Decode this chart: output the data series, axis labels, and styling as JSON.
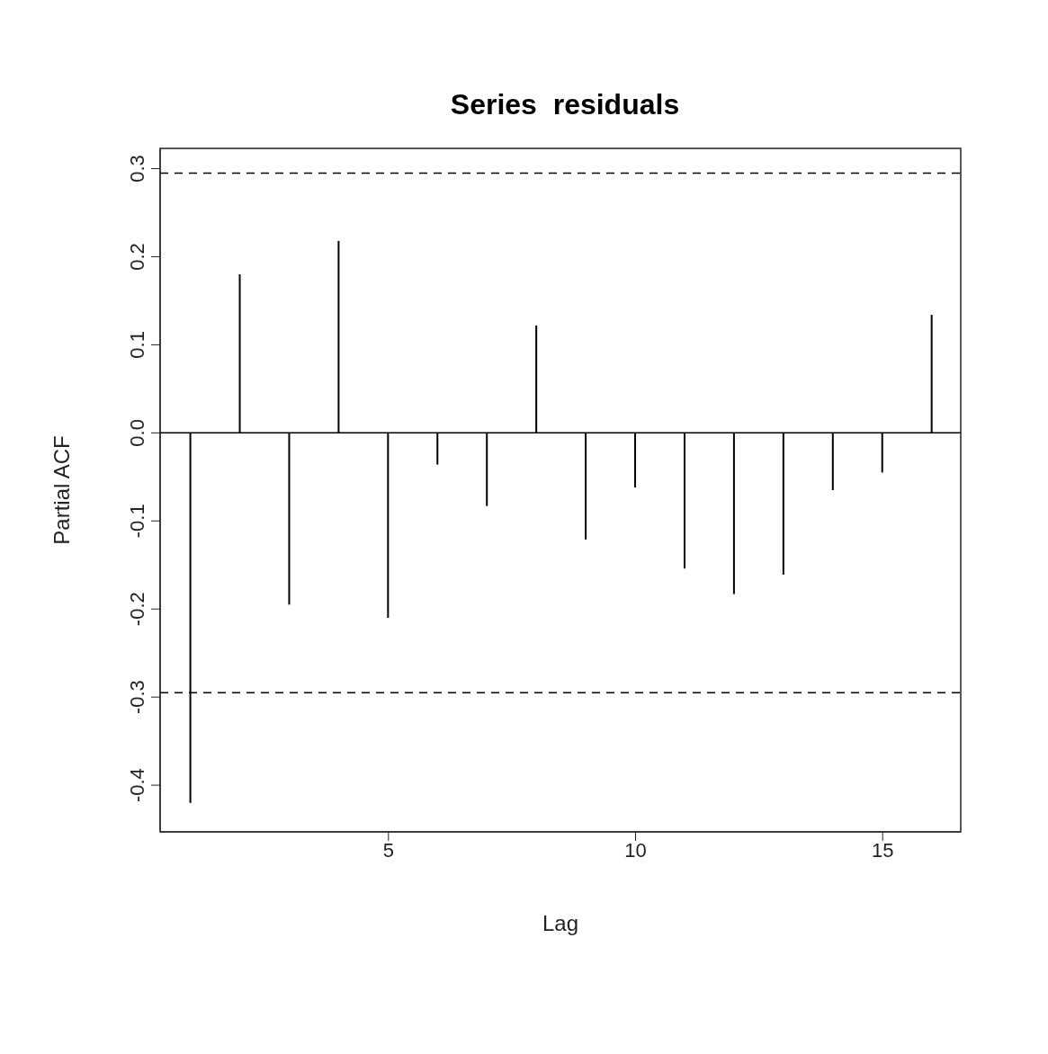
{
  "chart_data": {
    "type": "bar",
    "title": "Series  residuals",
    "xlabel": "Lag",
    "ylabel": "Partial ACF",
    "x": [
      1,
      2,
      3,
      4,
      5,
      6,
      7,
      8,
      9,
      10,
      11,
      12,
      13,
      14,
      15,
      16
    ],
    "values": [
      -0.42,
      0.18,
      -0.195,
      0.218,
      -0.21,
      -0.036,
      -0.083,
      0.122,
      -0.121,
      -0.062,
      -0.154,
      -0.183,
      -0.161,
      -0.065,
      -0.045,
      0.134
    ],
    "color": "#000000",
    "xlim": [
      0.38,
      16.58
    ],
    "xticks": [
      5,
      10,
      15
    ],
    "ylim": [
      -0.453,
      0.323
    ],
    "yticks": [
      -0.4,
      -0.3,
      -0.2,
      -0.1,
      {
        "value": 0,
        "label": "0.0"
      },
      0.1,
      0.2,
      0.3
    ],
    "ref_lines": [
      {
        "axis": "y",
        "value": 0.295,
        "color": "#000000",
        "line_style": "dashed"
      },
      {
        "axis": "y",
        "value": -0.295,
        "color": "#000000",
        "line_style": "dashed"
      },
      {
        "axis": "y",
        "value": 0,
        "color": "#000000",
        "line_style": "solid"
      }
    ],
    "grid": false,
    "legend": false
  }
}
